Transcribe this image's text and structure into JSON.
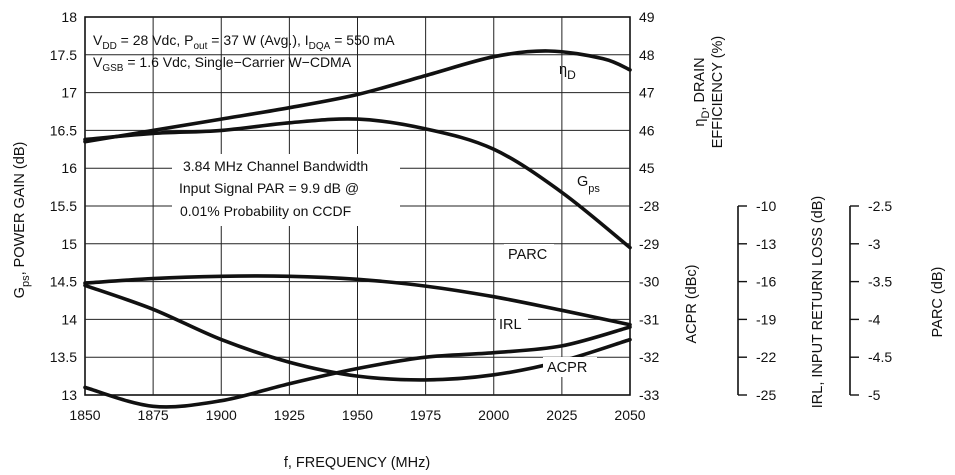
{
  "chart_data": {
    "type": "line",
    "xlabel": "f, FREQUENCY (MHz)",
    "x_ticks": [
      "1850",
      "1875",
      "1900",
      "1925",
      "1950",
      "1975",
      "2000",
      "2025",
      "2050"
    ],
    "xlim": [
      1850,
      2050
    ],
    "left_axis": {
      "label_main": "G",
      "label_sub": "ps",
      "label_rest": ", POWER GAIN (dB)",
      "ylim": [
        13,
        18
      ],
      "ticks": [
        "18",
        "17.5",
        "17",
        "16.5",
        "16",
        "15.5",
        "15",
        "14.5",
        "14",
        "13.5",
        "13"
      ]
    },
    "right_upper_axis": {
      "label_line1_main": "η",
      "label_line1_sub": "D",
      "label_line1_rest": ", DRAIN",
      "label_line2": "EFFICIENCY (%)",
      "ylim": [
        44,
        49
      ],
      "ticks": [
        "49",
        "48",
        "47",
        "46",
        "45"
      ]
    },
    "right_lower_axis": {
      "label": "ACPR (dBc)",
      "ylim": [
        -33,
        -28
      ],
      "ticks": [
        "-28",
        "-29",
        "-30",
        "-31",
        "-32",
        "-33"
      ]
    },
    "irl_axis": {
      "label": "IRL, INPUT RETURN LOSS (dB)",
      "ylim": [
        -25,
        -10
      ],
      "ticks": [
        "-10",
        "-13",
        "-16",
        "-19",
        "-22",
        "-25"
      ]
    },
    "parc_axis": {
      "label": "PARC (dB)",
      "ylim": [
        -5,
        -2.5
      ],
      "ticks": [
        "-2.5",
        "-3",
        "-3.5",
        "-4",
        "-4.5",
        "-5"
      ]
    },
    "conditions": {
      "line1_a": "V",
      "line1_a_sub": "DD",
      "line1_b": " = 28 Vdc, P",
      "line1_b_sub": "out",
      "line1_c": " = 37 W (Avg.), I",
      "line1_c_sub": "DQA",
      "line1_d": " = 550 mA",
      "line2_a": "V",
      "line2_a_sub": "GSB",
      "line2_b": " = 1.6 Vdc, Single−Carrier W−CDMA"
    },
    "signal_note": {
      "line1": "3.84 MHz Channel Bandwidth",
      "line2": "Input Signal PAR = 9.9 dB @",
      "line3": "0.01% Probability on CCDF"
    },
    "series_labels": {
      "eta_main": "η",
      "eta_sub": "D",
      "gps_main": "G",
      "gps_sub": "ps",
      "parc": "PARC",
      "irl": "IRL",
      "acpr": "ACPR"
    },
    "series": [
      {
        "name": "ηD",
        "axis": "right_upper",
        "x": [
          1850,
          1875,
          1900,
          1925,
          1950,
          1975,
          2000,
          2020,
          2040,
          2050
        ],
        "values": [
          45.7,
          46.0,
          46.3,
          46.6,
          46.95,
          47.45,
          47.95,
          48.1,
          47.9,
          47.6
        ]
      },
      {
        "name": "Gps",
        "axis": "left",
        "x": [
          1850,
          1875,
          1900,
          1925,
          1950,
          1975,
          2000,
          2025,
          2050
        ],
        "values": [
          16.38,
          16.46,
          16.5,
          16.6,
          16.65,
          16.52,
          16.25,
          15.68,
          14.95
        ]
      },
      {
        "name": "PARC",
        "axis": "parc",
        "x": [
          1850,
          1875,
          1900,
          1925,
          1950,
          1975,
          2000,
          2025,
          2050
        ],
        "values": [
          -3.52,
          -3.46,
          -3.43,
          -3.43,
          -3.47,
          -3.56,
          -3.7,
          -3.88,
          -4.07
        ]
      },
      {
        "name": "IRL",
        "axis": "irl",
        "x": [
          1850,
          1875,
          1900,
          1925,
          1950,
          1975,
          2000,
          2025,
          2050
        ],
        "values": [
          -16.3,
          -18.2,
          -20.6,
          -22.4,
          -23.5,
          -23.8,
          -23.4,
          -22.3,
          -20.6
        ]
      },
      {
        "name": "ACPR",
        "axis": "right_lower",
        "x": [
          1850,
          1875,
          1900,
          1925,
          1950,
          1975,
          2000,
          2025,
          2050
        ],
        "values": [
          -32.8,
          -33.3,
          -33.15,
          -32.7,
          -32.3,
          -32.0,
          -31.88,
          -31.7,
          -31.2
        ]
      }
    ]
  }
}
